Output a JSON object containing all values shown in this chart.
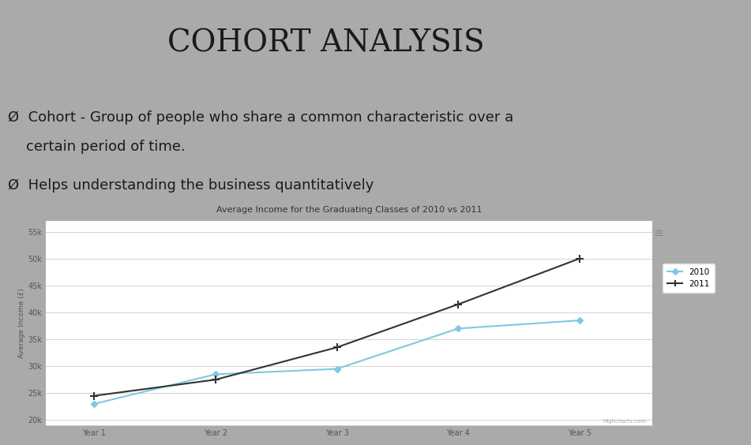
{
  "title": "COHORT ANALYSIS",
  "title_fontsize": 28,
  "title_color": "#1a1a1a",
  "bg_color": "#aaaaaa",
  "bullet1_line1": "Ø  Cohort - Group of people who share a common characteristic over a",
  "bullet1_line2": "    certain period of time.",
  "bullet2": "Ø  Helps understanding the business quantitatively",
  "bullet_fontsize": 13,
  "bullet_color": "#1a1a1a",
  "orange_color": "#e05a12",
  "chart_title": "Average Income for the Graduating Classes of 2010 vs 2011",
  "chart_bg": "#ffffff",
  "x_labels": [
    "Year 1",
    "Year 2",
    "Year 3",
    "Year 4",
    "Year 5"
  ],
  "x_values": [
    1,
    2,
    3,
    4,
    5
  ],
  "series_2010": [
    23000,
    28500,
    29500,
    37000,
    38500
  ],
  "series_2011": [
    24500,
    27500,
    33500,
    41500,
    50000
  ],
  "color_2010": "#7ec8e3",
  "color_2011": "#333333",
  "y_ticks": [
    20000,
    25000,
    30000,
    35000,
    40000,
    45000,
    50000,
    55000
  ],
  "y_tick_labels": [
    "20k",
    "25k",
    "30k",
    "35k",
    "40k",
    "45k",
    "50k",
    "55k"
  ],
  "ylabel": "Average Income (£)",
  "legend_2010": "2010",
  "legend_2011": "2011",
  "watermark": "Highcharts.com"
}
